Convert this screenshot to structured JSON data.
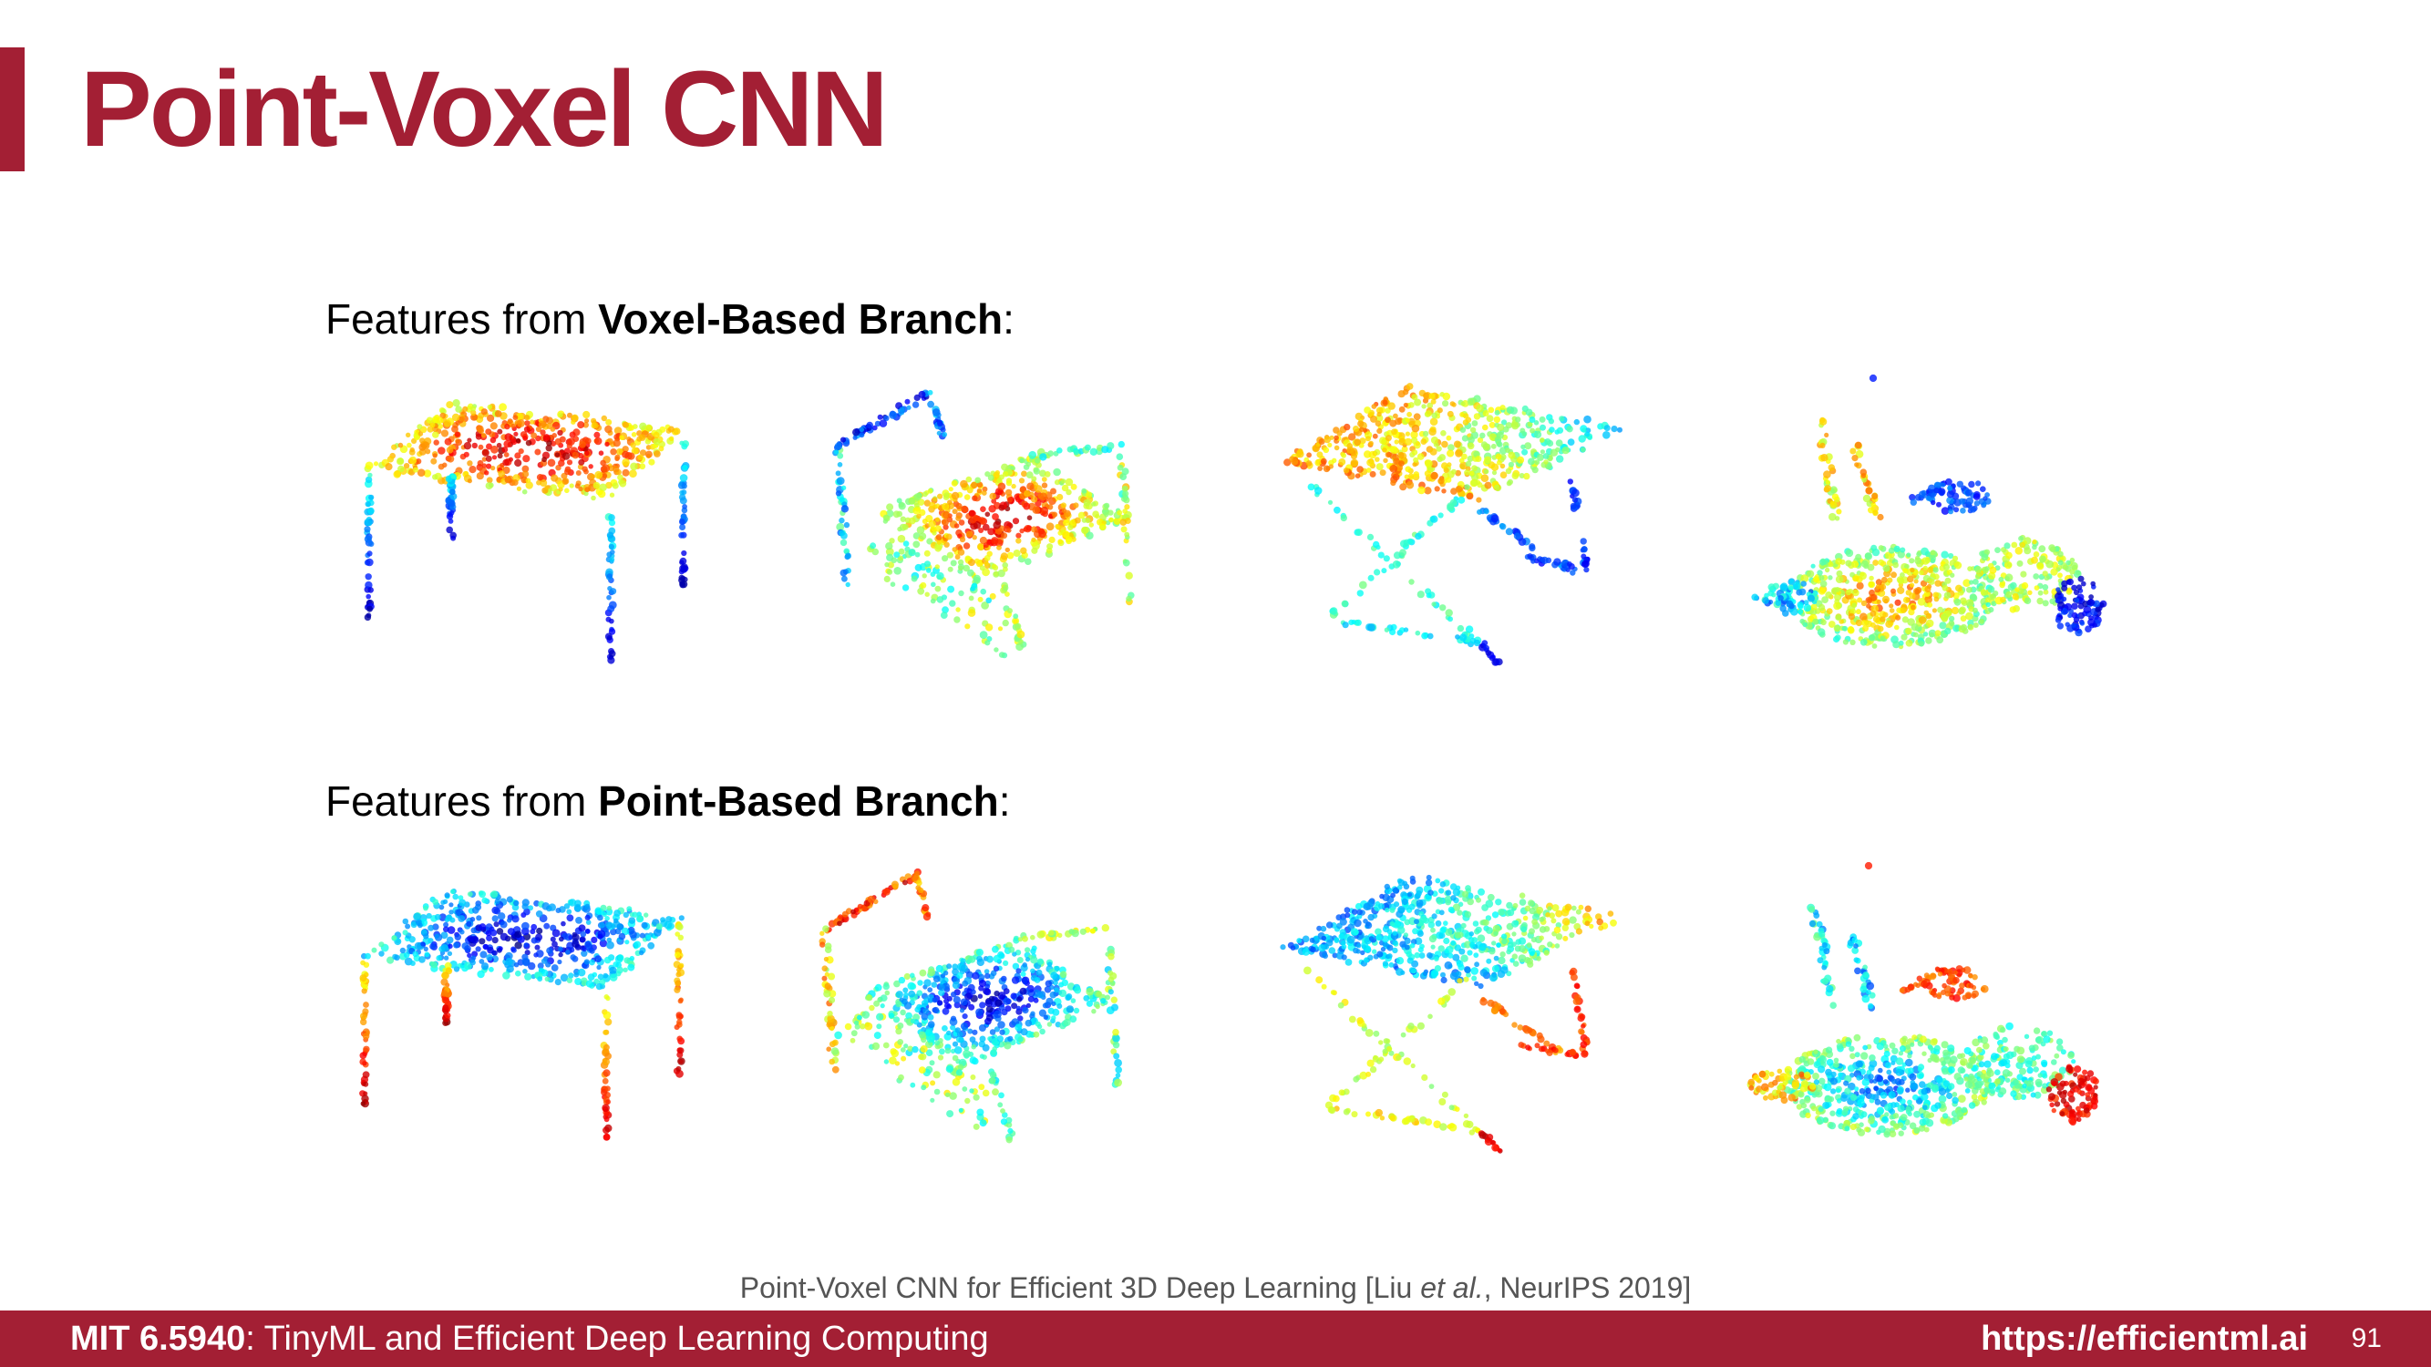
{
  "slide": {
    "title": "Point-Voxel CNN",
    "rows": [
      {
        "prefix": "Features from ",
        "branch": "Voxel-Based Branch",
        "suffix": ":"
      },
      {
        "prefix": "Features from ",
        "branch": "Point-Based Branch",
        "suffix": ":"
      }
    ],
    "objects": [
      "table",
      "chair",
      "folding-table",
      "excavator"
    ],
    "citation": {
      "before": "Point-Voxel CNN for Efficient 3D Deep Learning [Liu ",
      "italic": "et al.",
      "after": ", NeurIPS 2019]"
    },
    "footer": {
      "course_code": "MIT 6.5940",
      "course_name": ": TinyML and Efficient Deep Learning Computing",
      "url": "https://efficientml.ai",
      "page": "91"
    }
  },
  "colors": {
    "accent": "#a31f34",
    "colormap": "jet"
  }
}
